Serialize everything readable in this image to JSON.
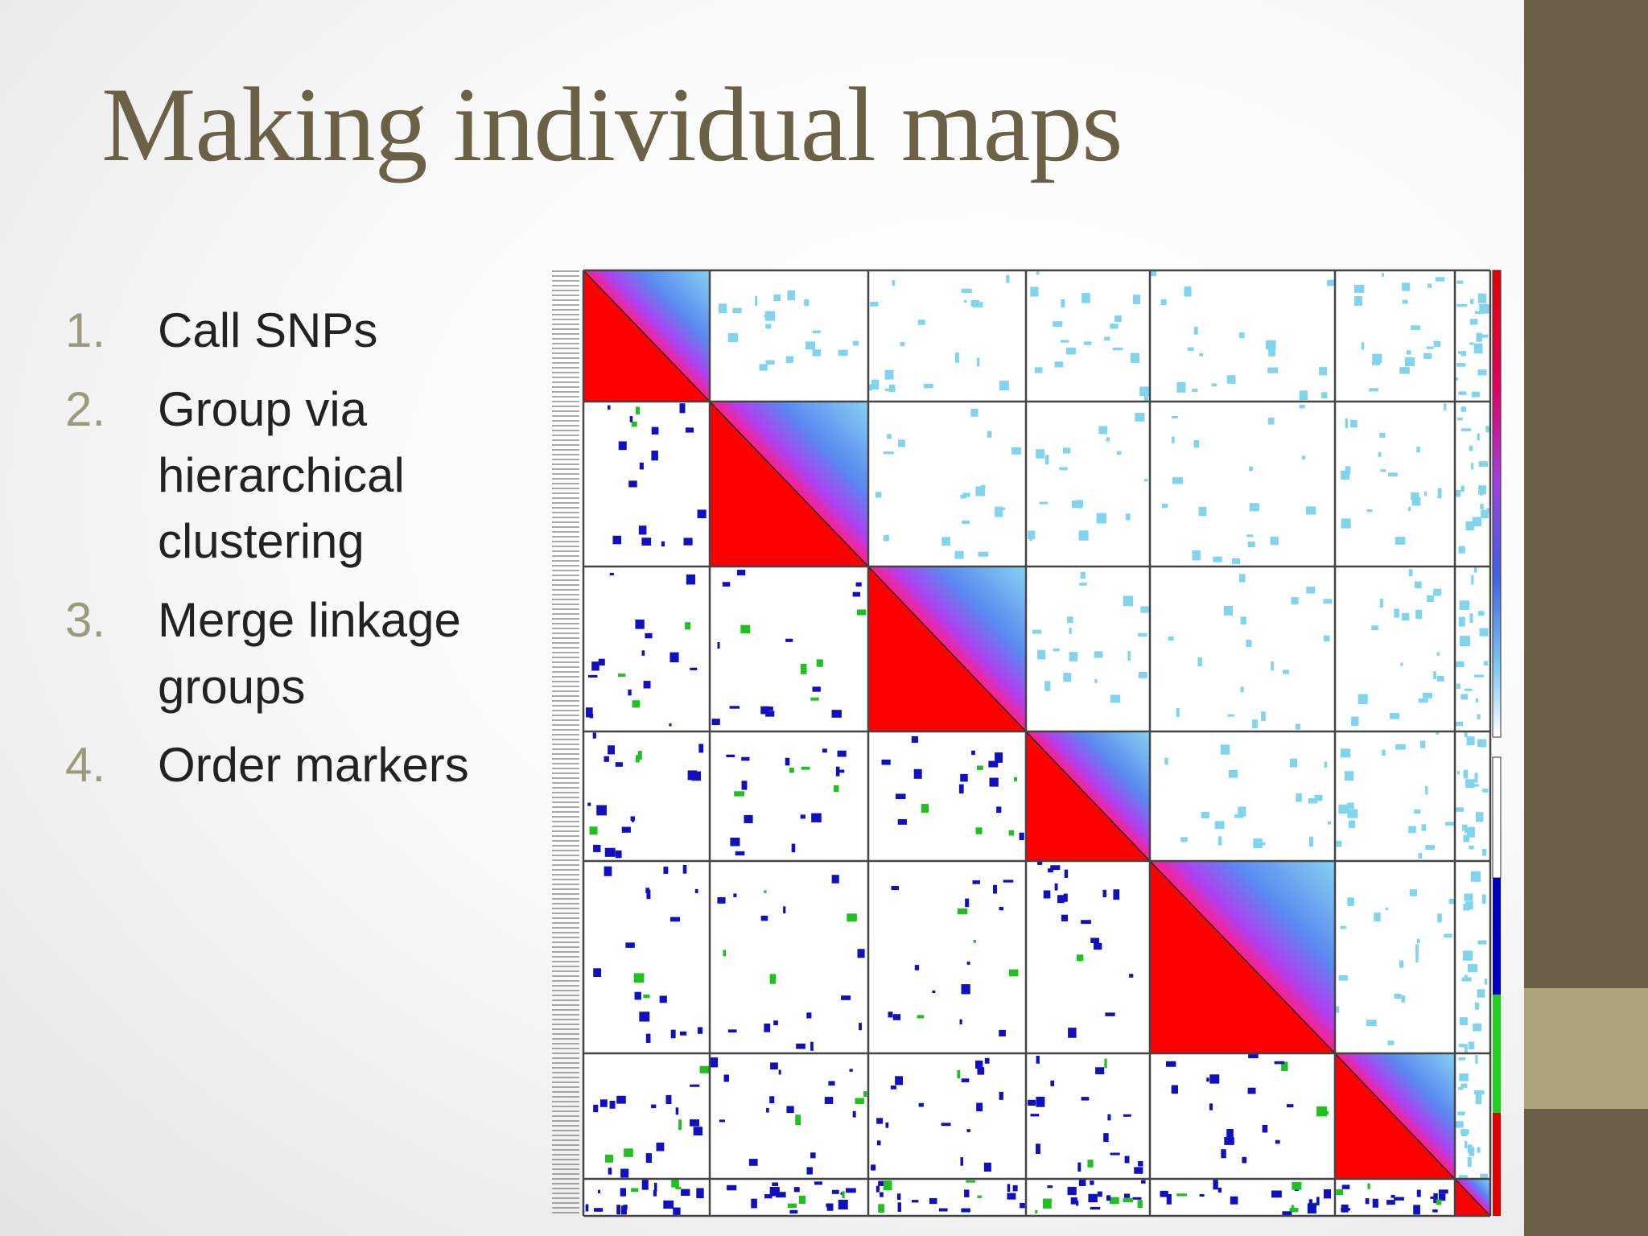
{
  "title": "Making individual maps",
  "list": [
    {
      "number": "1.",
      "lines": [
        "Call SNPs"
      ]
    },
    {
      "number": "2.",
      "lines": [
        "Group via",
        "hierarchical",
        "clustering"
      ]
    },
    {
      "number": "3.",
      "lines": [
        "Merge linkage",
        "groups"
      ]
    },
    {
      "number": "4.",
      "lines": [
        "Order markers"
      ]
    }
  ]
}
